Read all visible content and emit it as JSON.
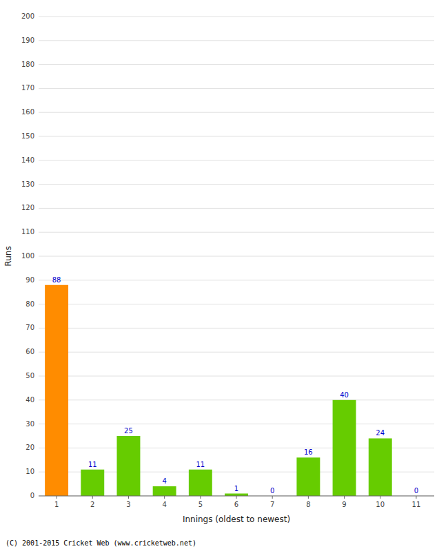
{
  "chart_data": {
    "type": "bar",
    "categories": [
      "1",
      "2",
      "3",
      "4",
      "5",
      "6",
      "7",
      "8",
      "9",
      "10",
      "11"
    ],
    "values": [
      88,
      11,
      25,
      4,
      11,
      1,
      0,
      16,
      40,
      24,
      0
    ],
    "colors": [
      "#FF8C00",
      "#66CC00",
      "#66CC00",
      "#66CC00",
      "#66CC00",
      "#66CC00",
      "#66CC00",
      "#66CC00",
      "#66CC00",
      "#66CC00",
      "#66CC00"
    ],
    "x_label": "Innings (oldest to newest)",
    "y_label": "Runs",
    "ylim": [
      0,
      200
    ],
    "yticks": [
      0,
      10,
      20,
      30,
      40,
      50,
      60,
      70,
      80,
      90,
      100,
      110,
      120,
      130,
      140,
      150,
      160,
      170,
      180,
      190,
      200
    ],
    "grid": true,
    "data_labels": true,
    "annotations": [
      "(C) 2001-2015 Cricket Web (www.cricketweb.net)"
    ]
  }
}
